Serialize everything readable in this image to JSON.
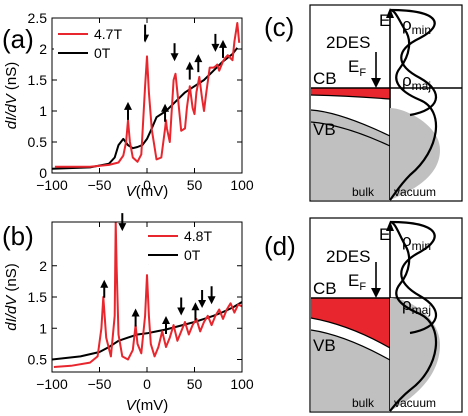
{
  "panels": {
    "a": "(a)",
    "b": "(b)",
    "c": "(c)",
    "d": "(d)"
  },
  "colors": {
    "red": "#e8262d",
    "black": "#000000",
    "gray": "#c0c0c0"
  },
  "chart_data": [
    {
      "type": "line",
      "panel": "(a)",
      "xlabel_italic": "V",
      "xlabel_unit": "(mV)",
      "ylabel_italic": "dI/dV",
      "ylabel_unit": " (nS)",
      "xlim": [
        -100,
        100
      ],
      "ylim": [
        0,
        2.5
      ],
      "xticks": [
        "-100",
        "-50",
        "0",
        "50",
        "100"
      ],
      "yticks": [
        "0",
        "0.5",
        "1",
        "1.5",
        "2",
        "2.5"
      ],
      "legend_position": "top-left",
      "series": [
        {
          "name": "4.7T",
          "color": "#e8262d",
          "x": [
            -97,
            -80,
            -60,
            -40,
            -30,
            -25,
            -22,
            -20,
            -18,
            -15,
            -10,
            -6,
            -4,
            -2,
            0,
            2,
            5,
            10,
            15,
            19,
            20,
            21,
            24,
            28,
            30,
            32,
            36,
            40,
            42,
            45,
            48,
            50,
            52,
            55,
            58,
            60,
            62,
            66,
            70,
            72,
            74,
            76,
            80,
            82,
            85,
            88,
            90,
            92,
            95,
            97
          ],
          "y": [
            0.1,
            0.1,
            0.1,
            0.13,
            0.17,
            0.28,
            0.5,
            0.85,
            0.5,
            0.25,
            0.18,
            0.3,
            0.85,
            1.4,
            1.88,
            1.3,
            0.7,
            0.22,
            0.25,
            0.72,
            0.85,
            0.72,
            0.5,
            1.5,
            1.6,
            1.3,
            0.68,
            0.72,
            1.05,
            1.4,
            1.05,
            0.95,
            1.3,
            1.55,
            1.2,
            1.0,
            1.25,
            1.7,
            1.7,
            1.72,
            1.75,
            1.65,
            1.8,
            1.85,
            1.9,
            1.85,
            1.82,
            2.12,
            2.42,
            2.1
          ]
        },
        {
          "name": "0T",
          "color": "#000000",
          "x": [
            -100,
            -60,
            -40,
            -34,
            -30,
            -25,
            -20,
            -15,
            -10,
            -5,
            0,
            5,
            10,
            20,
            30,
            40,
            50,
            60,
            70,
            80,
            90,
            95
          ],
          "y": [
            0.07,
            0.09,
            0.15,
            0.25,
            0.45,
            0.55,
            0.45,
            0.4,
            0.42,
            0.45,
            0.55,
            0.72,
            0.9,
            1.0,
            1.15,
            1.3,
            1.4,
            1.5,
            1.65,
            1.8,
            1.92,
            2.02
          ]
        }
      ],
      "annotations": [
        {
          "kind": "up-arrow",
          "x": -20,
          "y": 1.05
        },
        {
          "kind": "down-arrow",
          "x": -2,
          "y": 2.2
        },
        {
          "kind": "up-arrow",
          "x": 19,
          "y": 1.02
        },
        {
          "kind": "down-arrow",
          "x": 29,
          "y": 1.9
        },
        {
          "kind": "up-arrow",
          "x": 45,
          "y": 1.7
        },
        {
          "kind": "up-arrow",
          "x": 54,
          "y": 1.82
        },
        {
          "kind": "down-arrow",
          "x": 72,
          "y": 2.05
        },
        {
          "kind": "up-arrow",
          "x": 80,
          "y": 2.05
        }
      ]
    },
    {
      "type": "line",
      "panel": "(b)",
      "xlabel_italic": "V",
      "xlabel_unit": "(mV)",
      "ylabel_italic": "dI/dV",
      "ylabel_unit": " (nS)",
      "xlim": [
        -100,
        100
      ],
      "ylim": [
        0.3,
        2.7
      ],
      "xticks": [
        "-100",
        "-50",
        "0",
        "50",
        "100"
      ],
      "yticks": [
        "0.5",
        "1",
        "1.5",
        "2"
      ],
      "legend_position": "top-right",
      "series": [
        {
          "name": "4.8T",
          "color": "#e8262d",
          "x": [
            -98,
            -80,
            -60,
            -52,
            -48,
            -46,
            -43,
            -38,
            -34,
            -33,
            -32,
            -30,
            -26,
            -20,
            -15,
            -12,
            -10,
            -6,
            -2,
            0,
            2,
            4,
            8,
            12,
            16,
            20,
            24,
            28,
            32,
            36,
            40,
            44,
            48,
            52,
            56,
            60,
            64,
            68,
            72,
            76,
            80,
            84,
            88,
            92,
            96,
            100
          ],
          "y": [
            0.38,
            0.4,
            0.45,
            0.55,
            1.0,
            1.5,
            0.85,
            0.55,
            1.2,
            2.7,
            2.0,
            0.9,
            0.55,
            0.5,
            0.65,
            1.05,
            0.75,
            0.6,
            1.2,
            1.85,
            1.2,
            0.75,
            0.55,
            0.7,
            0.95,
            0.7,
            0.85,
            1.05,
            0.8,
            0.95,
            1.1,
            0.9,
            1.05,
            1.15,
            0.95,
            1.1,
            1.2,
            1.05,
            1.2,
            1.3,
            1.15,
            1.3,
            1.4,
            1.25,
            1.38,
            1.35
          ]
        },
        {
          "name": "0T",
          "color": "#000000",
          "x": [
            -100,
            -70,
            -50,
            -40,
            -30,
            -20,
            -10,
            0,
            10,
            20,
            30,
            40,
            50,
            60,
            70,
            80,
            90,
            100
          ],
          "y": [
            0.5,
            0.55,
            0.62,
            0.7,
            0.8,
            0.85,
            0.9,
            0.92,
            0.95,
            0.98,
            1.02,
            1.06,
            1.1,
            1.15,
            1.2,
            1.26,
            1.33,
            1.42
          ]
        }
      ],
      "annotations": [
        {
          "kind": "up-arrow",
          "x": -45,
          "y": 1.68
        },
        {
          "kind": "down-arrow",
          "x": -26,
          "y": 2.65
        },
        {
          "kind": "up-arrow",
          "x": -12,
          "y": 1.22
        },
        {
          "kind": "down-arrow",
          "x": 2,
          "y": 2.12
        },
        {
          "kind": "up-arrow",
          "x": 20,
          "y": 1.1
        },
        {
          "kind": "down-arrow",
          "x": 36,
          "y": 1.3
        },
        {
          "kind": "up-arrow",
          "x": 51,
          "y": 1.32
        },
        {
          "kind": "down-arrow",
          "x": 58,
          "y": 1.42
        },
        {
          "kind": "down-arrow",
          "x": 68,
          "y": 1.48
        }
      ]
    }
  ],
  "diagrams": {
    "c": {
      "e_label": "E",
      "twodes": "2DES",
      "ef_base": "E",
      "ef_sub": "F",
      "cb": "CB",
      "vb": "VB",
      "bulk": "bulk",
      "vacuum": "vacuum",
      "rho_min_base": "ρ",
      "rho_min_sub": "min",
      "rho_maj_base": "ρ",
      "rho_maj_sub": "maj"
    },
    "d": {
      "e_label": "E",
      "twodes": "2DES",
      "ef_base": "E",
      "ef_sub": "F",
      "cb": "CB",
      "vb": "VB",
      "bulk": "bulk",
      "vacuum": "vacuum",
      "rho_min_base": "ρ",
      "rho_min_sub": "min",
      "rho_maj_base": "ρ",
      "rho_maj_sub": "maj"
    }
  }
}
